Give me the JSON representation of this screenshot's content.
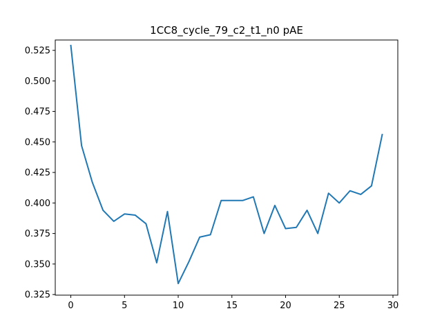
{
  "chart_data": {
    "type": "line",
    "title": "1CC8_cycle_79_c2_t1_n0 pAE",
    "xlabel": "",
    "ylabel": "",
    "xlim": [
      -1.45,
      30.45
    ],
    "ylim": [
      0.3245,
      0.5335
    ],
    "xticks": [
      0,
      5,
      10,
      15,
      20,
      25,
      30
    ],
    "yticks": [
      0.325,
      0.35,
      0.375,
      0.4,
      0.425,
      0.45,
      0.475,
      0.5,
      0.525
    ],
    "xtick_labels": [
      "0",
      "5",
      "10",
      "15",
      "20",
      "25",
      "30"
    ],
    "ytick_labels": [
      "0.325",
      "0.350",
      "0.375",
      "0.400",
      "0.425",
      "0.450",
      "0.475",
      "0.500",
      "0.525"
    ],
    "grid": false,
    "series": [
      {
        "color": "#1f77b4",
        "x": [
          0,
          1,
          2,
          3,
          4,
          5,
          6,
          7,
          8,
          9,
          10,
          11,
          12,
          13,
          14,
          15,
          16,
          17,
          18,
          19,
          20,
          21,
          22,
          23,
          24,
          25,
          26,
          27,
          28,
          29
        ],
        "values": [
          0.529,
          0.447,
          0.417,
          0.394,
          0.385,
          0.391,
          0.39,
          0.383,
          0.351,
          0.393,
          0.334,
          0.352,
          0.372,
          0.374,
          0.402,
          0.402,
          0.402,
          0.405,
          0.375,
          0.398,
          0.379,
          0.38,
          0.394,
          0.375,
          0.408,
          0.4,
          0.41,
          0.407,
          0.414,
          0.456
        ]
      }
    ]
  }
}
